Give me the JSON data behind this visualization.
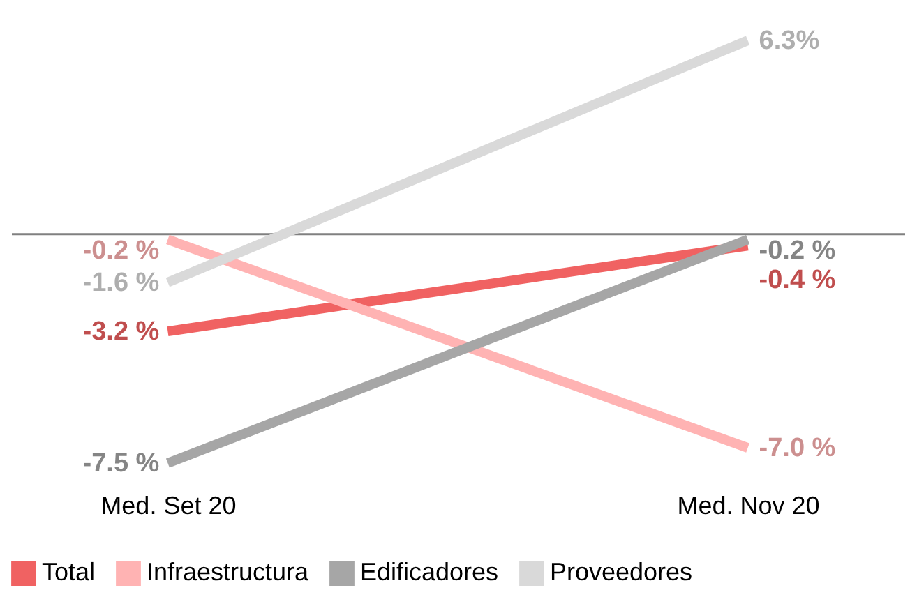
{
  "chart_data": {
    "type": "line",
    "categories": [
      "Med. Set 20",
      "Med. Nov 20"
    ],
    "series": [
      {
        "name": "Total",
        "color": "#f06262",
        "values": [
          -3.2,
          -0.4
        ],
        "value_labels": [
          "-3.2 %",
          "-0.4 %"
        ]
      },
      {
        "name": "Infraestructura",
        "color": "#ffb3b3",
        "values": [
          -0.2,
          -7.0
        ],
        "value_labels": [
          "-0.2 %",
          "-7.0 %"
        ]
      },
      {
        "name": "Edificadores",
        "color": "#a6a6a6",
        "values": [
          -7.5,
          -0.2
        ],
        "value_labels": [
          "-7.5 %",
          "-0.2 %"
        ]
      },
      {
        "name": "Proveedores",
        "color": "#d9d9d9",
        "values": [
          -1.6,
          6.3
        ],
        "value_labels": [
          "-1.6 %",
          "6.3%"
        ]
      }
    ],
    "line_style": "solid",
    "marker": "none",
    "legend": "bottom",
    "tick_labels": "x"
  }
}
